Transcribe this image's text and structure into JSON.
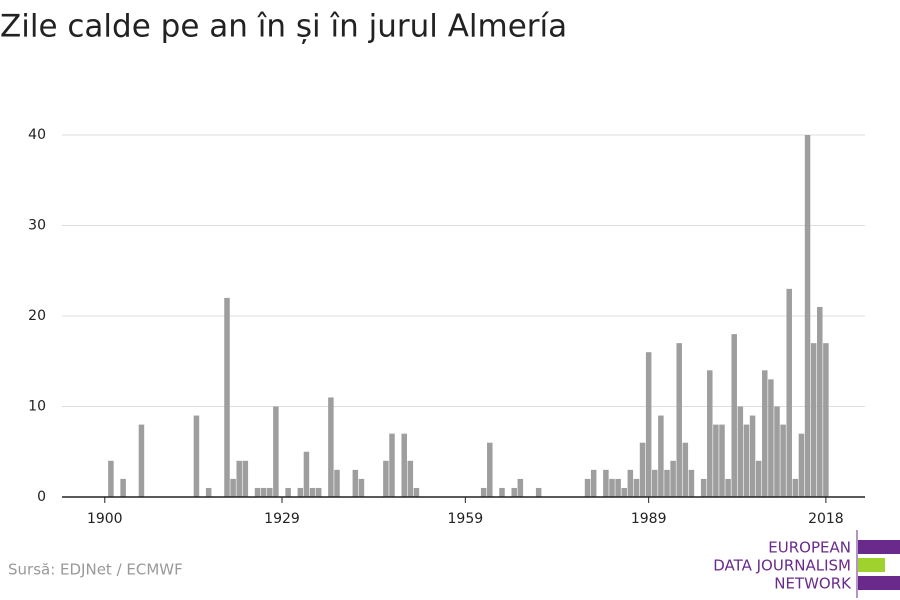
{
  "chart_data": {
    "type": "bar",
    "title": "Zile calde pe an în și în jurul Almería",
    "source": "Sursă: EDJNet / ECMWF",
    "logo": [
      "EUROPEAN",
      "DATA JOURNALISM",
      "NETWORK"
    ],
    "color": "#9e9e9e",
    "x": [
      1901,
      1903,
      1906,
      1915,
      1917,
      1920,
      1921,
      1922,
      1923,
      1925,
      1926,
      1927,
      1928,
      1930,
      1932,
      1933,
      1934,
      1935,
      1937,
      1938,
      1941,
      1942,
      1946,
      1947,
      1949,
      1950,
      1951,
      1962,
      1963,
      1965,
      1967,
      1968,
      1971,
      1979,
      1980,
      1982,
      1983,
      1984,
      1985,
      1986,
      1987,
      1988,
      1989,
      1990,
      1991,
      1992,
      1993,
      1994,
      1995,
      1996,
      1998,
      1999,
      2000,
      2001,
      2002,
      2003,
      2004,
      2005,
      2006,
      2007,
      2008,
      2009,
      2010,
      2011,
      2012,
      2013,
      2014,
      2015,
      2016,
      2017,
      2018
    ],
    "values": [
      4,
      2,
      8,
      9,
      1,
      22,
      2,
      4,
      4,
      1,
      1,
      1,
      10,
      1,
      1,
      5,
      1,
      1,
      11,
      3,
      3,
      2,
      4,
      7,
      7,
      4,
      1,
      1,
      6,
      1,
      1,
      2,
      1,
      2,
      3,
      3,
      2,
      2,
      1,
      3,
      2,
      6,
      16,
      3,
      9,
      3,
      4,
      17,
      6,
      3,
      2,
      14,
      8,
      8,
      2,
      18,
      10,
      8,
      9,
      4,
      14,
      13,
      10,
      8,
      23,
      2,
      7,
      40,
      17,
      21,
      17
    ],
    "xlim": [
      1893,
      2024.4
    ],
    "xticks": [
      1900,
      1929,
      1959,
      1989,
      2018
    ],
    "ylim": [
      0,
      40
    ],
    "yticks": [
      0,
      10,
      20,
      30,
      40
    ],
    "grid": true
  }
}
